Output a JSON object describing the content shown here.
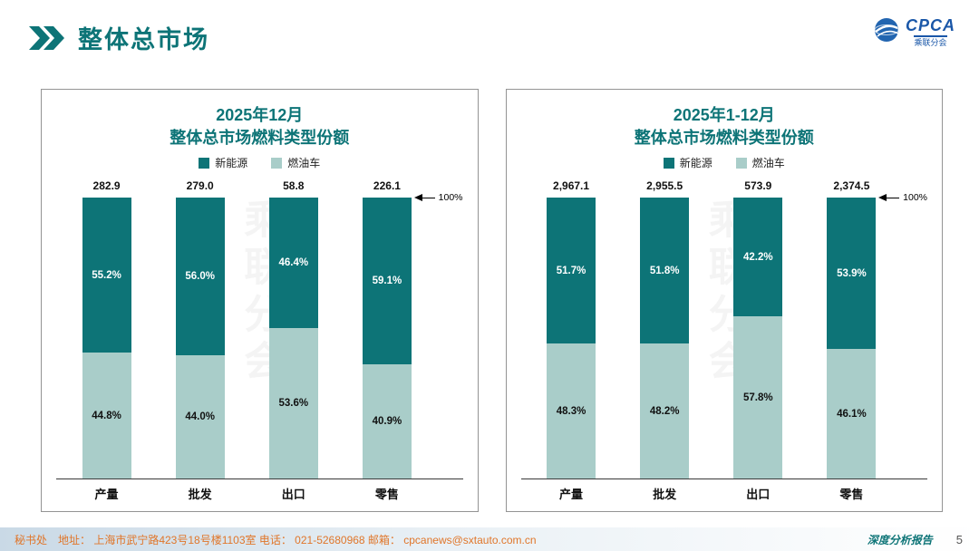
{
  "page": {
    "title": "整体总市场",
    "page_number": "5",
    "report_label": "深度分析报告",
    "footer_text": "秘书处　地址： 上海市武宁路423号18号楼1103室  电话： 021-52680968  邮箱： cpcanews@sxtauto.com.cn",
    "watermark": "乘联分会"
  },
  "logo": {
    "text": "CPCA",
    "subtext": "乘联分会"
  },
  "colors": {
    "teal": "#0d7477",
    "light_teal": "#a9cdc9",
    "footer_orange": "#e0762a",
    "logo_blue": "#1a57a8"
  },
  "chart_data": [
    {
      "type": "bar",
      "stacked": true,
      "title_line1": "2025年12月",
      "title_line2": "整体总市场燃料类型份额",
      "categories": [
        "产量",
        "批发",
        "出口",
        "零售"
      ],
      "totals": [
        "282.9",
        "279.0",
        "58.8",
        "226.1"
      ],
      "series": [
        {
          "name": "新能源",
          "values": [
            55.2,
            56.0,
            46.4,
            59.1
          ]
        },
        {
          "name": "燃油车",
          "values": [
            44.8,
            44.0,
            53.6,
            40.9
          ]
        }
      ],
      "annotation": "100%",
      "ylim": [
        0,
        100
      ],
      "legend_position": "top",
      "grid": false
    },
    {
      "type": "bar",
      "stacked": true,
      "title_line1": "2025年1-12月",
      "title_line2": "整体总市场燃料类型份额",
      "categories": [
        "产量",
        "批发",
        "出口",
        "零售"
      ],
      "totals": [
        "2,967.1",
        "2,955.5",
        "573.9",
        "2,374.5"
      ],
      "series": [
        {
          "name": "新能源",
          "values": [
            51.7,
            51.8,
            42.2,
            53.9
          ]
        },
        {
          "name": "燃油车",
          "values": [
            48.3,
            48.2,
            57.8,
            46.1
          ]
        }
      ],
      "annotation": "100%",
      "ylim": [
        0,
        100
      ],
      "legend_position": "top",
      "grid": false
    }
  ]
}
